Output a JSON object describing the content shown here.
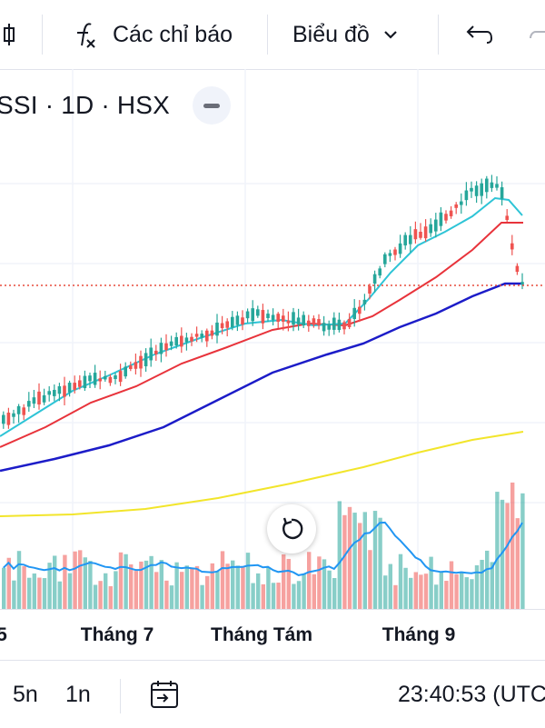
{
  "toolbar": {
    "indicators_label": "Các chỉ báo",
    "chart_type_label": "Biểu đồ"
  },
  "legend": {
    "symbol_line": "SSI · 1D · HSX"
  },
  "colors": {
    "up": "#26a69a",
    "down": "#ef5350",
    "ma_fast": "#2ec4d6",
    "ma_mid": "#e8333b",
    "ma_slow": "#1c1cc8",
    "ma_long": "#f2e52b",
    "volume_ma": "#2196f3",
    "price_line": "#e74c3c"
  },
  "chart_data": {
    "type": "candlestick",
    "symbol": "SSI",
    "interval": "1D",
    "exchange": "HSX",
    "time_axis": [
      "5",
      "Tháng 7",
      "Tháng Tám",
      "Tháng 9"
    ],
    "price_axis_visible": false,
    "grid": true,
    "overlays": [
      "moving averages (4 lines)",
      "volume histogram",
      "volume moving average"
    ]
  },
  "bottom_bar": {
    "range_5d": "5n",
    "range_1y": "1n",
    "clock": "23:40:53 (UTC"
  }
}
